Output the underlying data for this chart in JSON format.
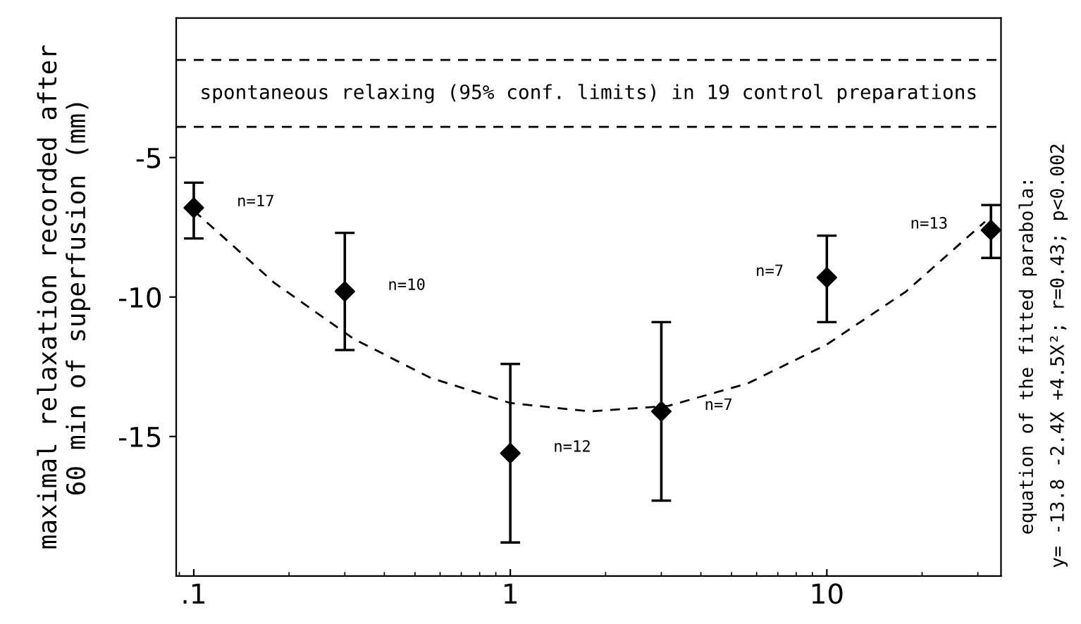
{
  "chart_data": {
    "type": "scatter",
    "ylabel": "maximal relaxation recorded after\n60 min of superfusion (mm)",
    "xlim": [
      0.088,
      35.5
    ],
    "ylim": [
      -20,
      0
    ],
    "log": "x",
    "xticks": [
      {
        "value": 0.1,
        "label": ".1"
      },
      1,
      10
    ],
    "yticks": [
      -5,
      -10,
      -15
    ],
    "series": [
      {
        "color": "#000000",
        "marker": "diamond",
        "x": [
          0.1,
          0.3,
          1,
          3,
          10,
          33
        ],
        "values": [
          -6.8,
          -9.8,
          -15.6,
          -14.1,
          -9.3,
          -7.6
        ],
        "errors": [
          [
            -7.9,
            -5.9
          ],
          [
            -11.9,
            -7.7
          ],
          [
            -18.8,
            -12.4
          ],
          [
            -17.3,
            -10.9
          ],
          [
            -10.9,
            -7.8
          ],
          [
            -8.6,
            -6.7
          ]
        ]
      },
      {
        "type": "line",
        "color": "#000000",
        "line_style": "dashed",
        "marker": "none",
        "x": [
          0.1,
          0.18,
          0.32,
          0.56,
          1,
          1.78,
          3.16,
          5.62,
          10,
          17.8,
          31.6
        ],
        "values": [
          -6.9,
          -9.5,
          -11.5,
          -12.9,
          -13.8,
          -14.1,
          -13.9,
          -13.1,
          -11.7,
          -9.8,
          -7.3
        ]
      }
    ],
    "ref_lines": [
      {
        "axis": "y",
        "value": -1.5,
        "line_style": "dashed"
      },
      {
        "axis": "y",
        "value": -3.9,
        "line_style": "dashed",
        "label": "spontaneous relaxing (95% conf. limits) in 19 control preparations"
      }
    ],
    "annotations": [
      {
        "text": "n=17",
        "x": 0.1,
        "y": -6.8
      },
      {
        "text": "n=10",
        "x": 0.3,
        "y": -9.8
      },
      {
        "text": "n=12",
        "x": 1,
        "y": -15.6
      },
      {
        "text": "n=7",
        "x": 3,
        "y": -14.1
      },
      {
        "text": "n=7",
        "x": 10,
        "y": -9.3
      },
      {
        "text": "n=13",
        "x": 33,
        "y": -7.6
      },
      "equation of the fitted parabola:\ny= -13.8 -2.4X +4.5X²; r=0.43; p<0.002"
    ],
    "grid": false,
    "legend": false
  }
}
